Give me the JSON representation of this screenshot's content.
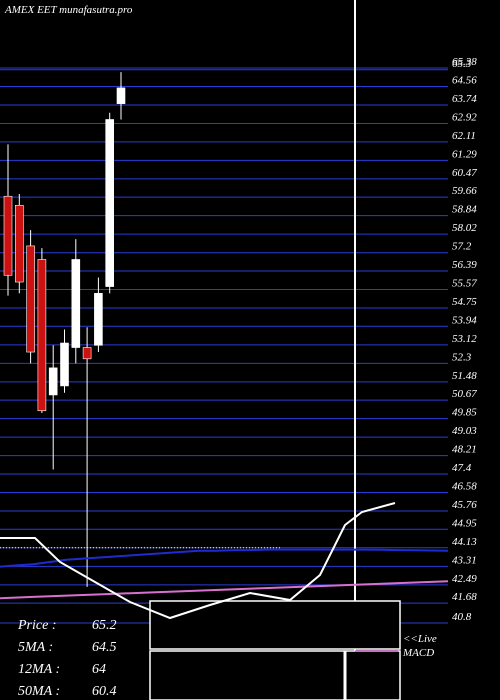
{
  "header": {
    "title": "AMEX  EET munafasutra.pro"
  },
  "chart_data": {
    "type": "candlestick",
    "y_axis": {
      "ticks": [
        65.38,
        65.3,
        64.56,
        63.74,
        62.92,
        62.11,
        61.29,
        60.47,
        59.66,
        58.84,
        58.02,
        57.2,
        56.39,
        55.57,
        54.75,
        53.94,
        53.12,
        52.3,
        51.48,
        50.67,
        49.85,
        49.03,
        48.21,
        47.4,
        46.58,
        45.76,
        44.95,
        44.13,
        43.31,
        42.49,
        41.68,
        40.8
      ],
      "tick_labels": [
        "65.38",
        "65.3",
        "64.56",
        "63.74",
        "62.92",
        "62.11",
        "61.29",
        "60.47",
        "59.66",
        "58.84",
        "58.02",
        "57.2",
        "56.39",
        "55.57",
        "54.75",
        "53.94",
        "53.12",
        "52.3",
        "51.48",
        "50.67",
        "49.85",
        "49.03",
        "48.21",
        "47.4",
        "46.58",
        "45.76",
        "44.95",
        "44.13",
        "43.31",
        "42.49",
        "41.68",
        "40.8"
      ],
      "range": [
        40.8,
        65.38
      ]
    },
    "candles": [
      {
        "open": 59.7,
        "close": 56.2,
        "high": 62.0,
        "low": 55.3
      },
      {
        "open": 59.3,
        "close": 55.9,
        "high": 59.8,
        "low": 55.4
      },
      {
        "open": 57.5,
        "close": 52.8,
        "high": 58.2,
        "low": 52.3
      },
      {
        "open": 56.9,
        "close": 50.2,
        "high": 57.4,
        "low": 50.1
      },
      {
        "open": 50.9,
        "close": 52.1,
        "high": 53.1,
        "low": 47.6
      },
      {
        "open": 51.3,
        "close": 53.2,
        "high": 53.8,
        "low": 51.0
      },
      {
        "open": 53.0,
        "close": 56.9,
        "high": 57.8,
        "low": 52.3
      },
      {
        "open": 53.0,
        "close": 52.5,
        "high": 53.9,
        "low": 42.4
      },
      {
        "open": 53.1,
        "close": 55.4,
        "high": 56.1,
        "low": 52.8
      },
      {
        "open": 55.7,
        "close": 63.1,
        "high": 63.4,
        "low": 55.4
      },
      {
        "open": 63.8,
        "close": 64.5,
        "high": 65.2,
        "low": 63.1
      }
    ],
    "moving_averages": [
      {
        "name": "5MA",
        "color": "#ffffff",
        "values": [
          44.13,
          44.13,
          44.13,
          44.13,
          44.13,
          44.13,
          44.13,
          44.13,
          44.13,
          44.13,
          44.13,
          44.13,
          44.13,
          44.13,
          44.13,
          44.13,
          44.13,
          44.13,
          44.13,
          44.13,
          44.13,
          44.13,
          44.13,
          44.13,
          44.13,
          44.13,
          44.13,
          44.13,
          44.13,
          44.13,
          44.13,
          44.13,
          44.13,
          44.13,
          44.13,
          44.13,
          44.13,
          44.13,
          44.13,
          44.13,
          44.13,
          44.13,
          44.13,
          44.13,
          44.13,
          44.13,
          44.13,
          44.13,
          44.13,
          44.13,
          44.13,
          44.13,
          44.13,
          44.13,
          44.13
        ]
      },
      {
        "name": "12MA",
        "color": "#1f2bd1",
        "values": [
          43.3,
          43.35,
          43.4,
          43.5,
          43.6,
          43.65,
          43.7,
          43.75,
          43.8,
          43.85,
          43.9,
          43.95,
          44.0,
          44.0,
          44.02,
          44.03,
          44.05,
          44.05,
          44.05,
          44.05,
          44.05,
          44.05,
          44.05,
          44.04,
          44.03,
          44.02,
          44.01,
          44.0
        ]
      },
      {
        "name": "50MA",
        "color": "#d870d0",
        "values": [
          41.9,
          41.95,
          42.0,
          42.05,
          42.1,
          42.15,
          42.2,
          42.25,
          42.3,
          42.35,
          42.4,
          42.45,
          42.5,
          42.55,
          42.6,
          42.65
        ]
      }
    ],
    "stats": [
      {
        "label": "Price",
        "value": "65.2"
      },
      {
        "label": "5MA",
        "value": "64.5"
      },
      {
        "label": "12MA",
        "value": "64"
      },
      {
        "label": "50MA",
        "value": "60.4"
      }
    ],
    "macd_label_1": "<<Live",
    "macd_label_2": "MACD"
  },
  "colors": {
    "background": "#000000",
    "grid": "#2a3dd8",
    "bull": "#ffffff",
    "bear": "#cc1111",
    "text": "#ffffff",
    "ma12": "#1f2bd1",
    "ma50": "#d870d0"
  }
}
